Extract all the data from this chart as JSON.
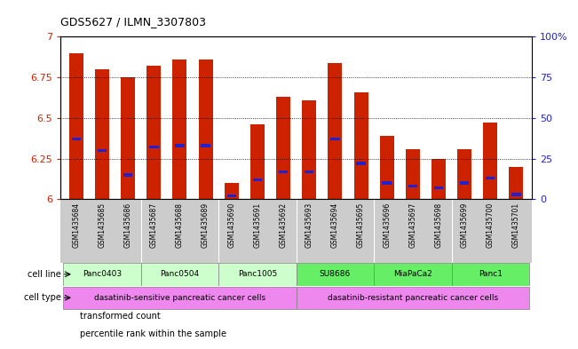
{
  "title": "GDS5627 / ILMN_3307803",
  "samples": [
    "GSM1435684",
    "GSM1435685",
    "GSM1435686",
    "GSM1435687",
    "GSM1435688",
    "GSM1435689",
    "GSM1435690",
    "GSM1435691",
    "GSM1435692",
    "GSM1435693",
    "GSM1435694",
    "GSM1435695",
    "GSM1435696",
    "GSM1435697",
    "GSM1435698",
    "GSM1435699",
    "GSM1435700",
    "GSM1435701"
  ],
  "bar_heights": [
    6.9,
    6.8,
    6.75,
    6.82,
    6.86,
    6.86,
    6.1,
    6.46,
    6.63,
    6.61,
    6.84,
    6.66,
    6.39,
    6.31,
    6.25,
    6.31,
    6.47,
    6.2
  ],
  "percentile_values": [
    37,
    30,
    15,
    32,
    33,
    33,
    2,
    12,
    17,
    17,
    37,
    22,
    10,
    8,
    7,
    10,
    13,
    3
  ],
  "ylim_left": [
    6.0,
    7.0
  ],
  "ylim_right": [
    0,
    100
  ],
  "yticks_left": [
    6.0,
    6.25,
    6.5,
    6.75,
    7.0
  ],
  "ytick_labels_left": [
    "6",
    "6.25",
    "6.5",
    "6.75",
    "7"
  ],
  "yticks_right": [
    0,
    25,
    50,
    75,
    100
  ],
  "ytick_labels_right": [
    "0",
    "25",
    "50",
    "75",
    "100%"
  ],
  "grid_lines": [
    6.25,
    6.5,
    6.75
  ],
  "bar_color": "#CC2200",
  "percentile_color": "#2222CC",
  "cell_lines": [
    {
      "name": "Panc0403",
      "start": 0,
      "end": 2,
      "color": "#ccffcc"
    },
    {
      "name": "Panc0504",
      "start": 3,
      "end": 5,
      "color": "#ccffcc"
    },
    {
      "name": "Panc1005",
      "start": 6,
      "end": 8,
      "color": "#ccffcc"
    },
    {
      "name": "SU8686",
      "start": 9,
      "end": 11,
      "color": "#66ee66"
    },
    {
      "name": "MiaPaCa2",
      "start": 12,
      "end": 14,
      "color": "#66ee66"
    },
    {
      "name": "Panc1",
      "start": 15,
      "end": 17,
      "color": "#66ee66"
    }
  ],
  "cell_types": [
    {
      "name": "dasatinib-sensitive pancreatic cancer cells",
      "start": 0,
      "end": 8,
      "color": "#ee88ee"
    },
    {
      "name": "dasatinib-resistant pancreatic cancer cells",
      "start": 9,
      "end": 17,
      "color": "#ee88ee"
    }
  ],
  "legend_items": [
    {
      "label": "transformed count",
      "color": "#CC2200"
    },
    {
      "label": "percentile rank within the sample",
      "color": "#2222CC"
    }
  ],
  "bg_color": "#ffffff",
  "sample_bg_color": "#cccccc",
  "axes_label_color_left": "#CC2200",
  "axes_label_color_right": "#2222CC"
}
